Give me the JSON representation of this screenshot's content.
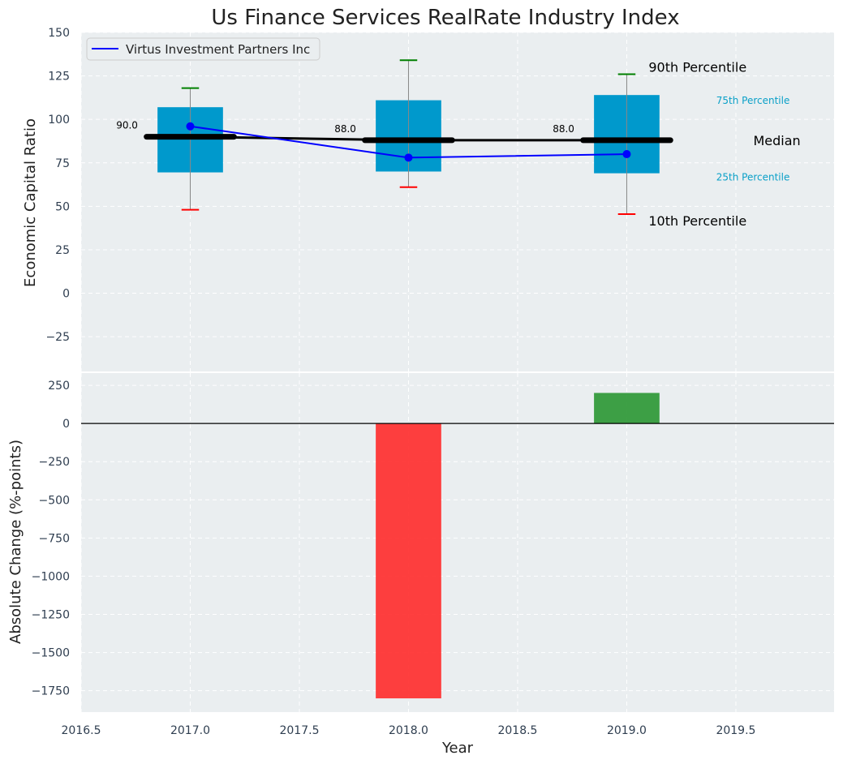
{
  "title": "Us Finance Services RealRate Industry Index",
  "chart_data": [
    {
      "type": "box",
      "title": "Us Finance Services RealRate Industry Index",
      "xlabel": "",
      "ylabel": "Economic Capital Ratio",
      "xlim": [
        2016.5,
        2019.95
      ],
      "ylim": [
        -45,
        150
      ],
      "y_ticks": [
        -25,
        0,
        25,
        50,
        75,
        100,
        125,
        150
      ],
      "y_tick_labels": [
        "−25",
        "0",
        "25",
        "50",
        "75",
        "100",
        "125",
        "150"
      ],
      "grid": true,
      "legend_position": "top-left",
      "boxes": [
        {
          "x": 2017.0,
          "p10": 48,
          "p25": 69.5,
          "median": 90,
          "p75": 107,
          "p90": 118,
          "median_label": "90.0"
        },
        {
          "x": 2018.0,
          "p10": 61,
          "p25": 70,
          "median": 88,
          "p75": 111,
          "p90": 134,
          "median_label": "88.0"
        },
        {
          "x": 2019.0,
          "p10": 45.5,
          "p25": 69,
          "median": 88,
          "p75": 114,
          "p90": 126,
          "median_label": "88.0"
        }
      ],
      "series": [
        {
          "name": "Virtus Investment Partners Inc",
          "x": [
            2017.0,
            2018.0,
            2019.0
          ],
          "values": [
            96,
            78,
            80
          ],
          "color": "#0000ff"
        }
      ],
      "colors": {
        "box": "#0099cc",
        "median": "#000000",
        "p90_cap": "#008000",
        "p10_cap": "#ff0000",
        "whisker": "#888888"
      },
      "annotations": {
        "p90": "90th Percentile",
        "p75": "75th Percentile",
        "median": "Median",
        "p25": "25th Percentile",
        "p10": "10th Percentile"
      }
    },
    {
      "type": "bar",
      "xlabel": "Year",
      "ylabel": "Absolute Change (%-points)",
      "xlim": [
        2016.5,
        2019.95
      ],
      "ylim": [
        -1890,
        330
      ],
      "x_ticks": [
        2016.5,
        2017.0,
        2017.5,
        2018.0,
        2018.5,
        2019.0,
        2019.5
      ],
      "x_tick_labels": [
        "2016.5",
        "2017.0",
        "2017.5",
        "2018.0",
        "2018.5",
        "2019.0",
        "2019.5"
      ],
      "y_ticks": [
        -1750,
        -1500,
        -1250,
        -1000,
        -750,
        -500,
        -250,
        0,
        250
      ],
      "y_tick_labels": [
        "−1750",
        "−1500",
        "−1250",
        "−1000",
        "−750",
        "−500",
        "−250",
        "0",
        "250"
      ],
      "grid": true,
      "bars": [
        {
          "x": 2018.0,
          "value": -1800,
          "color": "#ff2a2a"
        },
        {
          "x": 2019.0,
          "value": 200,
          "color": "#2a9632"
        }
      ]
    }
  ]
}
